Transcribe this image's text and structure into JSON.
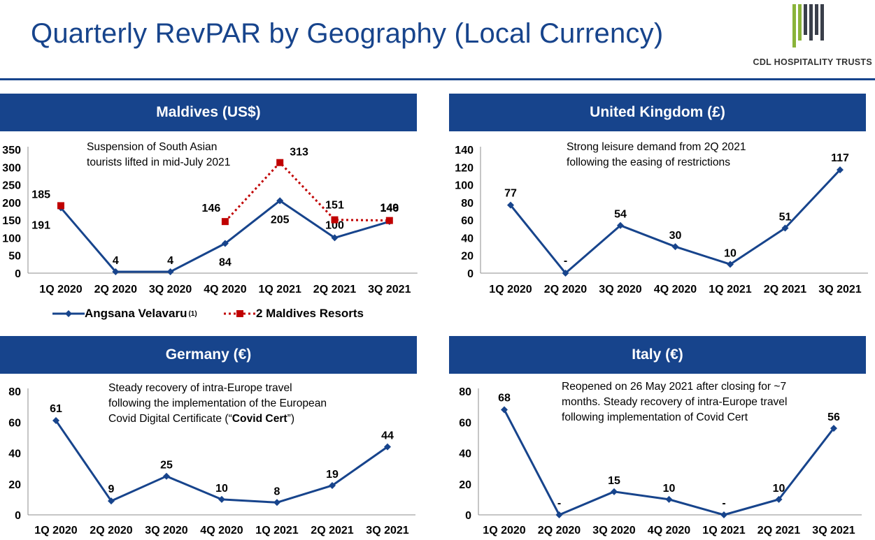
{
  "page": {
    "title": "Quarterly RevPAR by Geography (Local Currency)",
    "logo_text": "CDL HOSPITALITY TRUSTS",
    "brand_color": "#17448c"
  },
  "chart_data": [
    {
      "type": "line",
      "title": "Maldives (US$)",
      "annotation": [
        "Suspension of South Asian",
        "tourists lifted in mid-July 2021"
      ],
      "categories": [
        "1Q 2020",
        "2Q 2020",
        "3Q 2020",
        "4Q 2020",
        "1Q 2021",
        "2Q 2021",
        "3Q 2021"
      ],
      "ylim": [
        0,
        350
      ],
      "yticks": [
        0,
        50,
        100,
        150,
        200,
        250,
        300,
        350
      ],
      "series": [
        {
          "name": "Angsana Velavaru",
          "name_sup": "(1)",
          "color": "#17448c",
          "values": [
            185,
            4,
            4,
            84,
            205,
            100,
            146
          ],
          "labels": [
            "185",
            "4",
            "4",
            "84",
            "205",
            "100",
            "146"
          ]
        },
        {
          "name": "2 Maldives Resorts",
          "color": "#c00000",
          "values": [
            null,
            null,
            null,
            146,
            313,
            151,
            149
          ],
          "start_value": 191,
          "labels": [
            "191",
            null,
            null,
            "146",
            "313",
            "151",
            "149"
          ]
        }
      ]
    },
    {
      "type": "line",
      "title": "United Kingdom (£)",
      "annotation": [
        "Strong leisure demand from 2Q 2021",
        "following the easing of restrictions"
      ],
      "categories": [
        "1Q 2020",
        "2Q 2020",
        "3Q 2020",
        "4Q 2020",
        "1Q 2021",
        "2Q 2021",
        "3Q 2021"
      ],
      "ylim": [
        0,
        140
      ],
      "yticks": [
        0,
        20,
        40,
        60,
        80,
        100,
        120,
        140
      ],
      "series": [
        {
          "name": "United Kingdom",
          "color": "#17448c",
          "values": [
            77,
            0,
            54,
            30,
            10,
            51,
            117
          ],
          "labels": [
            "77",
            "-",
            "54",
            "30",
            "10",
            "51",
            "117"
          ]
        }
      ]
    },
    {
      "type": "line",
      "title": "Germany (€)",
      "annotation": [
        "Steady recovery of intra-Europe travel",
        "following the implementation of the European",
        "Covid Digital Certificate (“",
        "Covid Cert",
        "”)"
      ],
      "categories": [
        "1Q 2020",
        "2Q 2020",
        "3Q 2020",
        "4Q 2020",
        "1Q 2021",
        "2Q 2021",
        "3Q 2021"
      ],
      "ylim": [
        0,
        80
      ],
      "yticks": [
        0,
        20,
        40,
        60,
        80
      ],
      "series": [
        {
          "name": "Germany",
          "color": "#17448c",
          "values": [
            61,
            9,
            25,
            10,
            8,
            19,
            44
          ],
          "labels": [
            "61",
            "9",
            "25",
            "10",
            "8",
            "19",
            "44"
          ]
        }
      ]
    },
    {
      "type": "line",
      "title": "Italy (€)",
      "annotation": [
        "Reopened on 26 May 2021 after closing for ~7",
        "months. Steady recovery of intra-Europe travel",
        "following implementation of Covid Cert"
      ],
      "categories": [
        "1Q 2020",
        "2Q 2020",
        "3Q 2020",
        "4Q 2020",
        "1Q 2021",
        "2Q 2021",
        "3Q 2021"
      ],
      "ylim": [
        0,
        80
      ],
      "yticks": [
        0,
        20,
        40,
        60,
        80
      ],
      "series": [
        {
          "name": "Italy",
          "color": "#17448c",
          "values": [
            68,
            0,
            15,
            10,
            0,
            10,
            56
          ],
          "labels": [
            "68",
            "-",
            "15",
            "10",
            "-",
            "10",
            "56"
          ]
        }
      ]
    }
  ]
}
